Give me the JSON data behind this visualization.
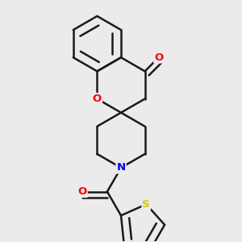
{
  "background_color": "#ebebeb",
  "bond_color": "#1a1a1a",
  "atom_colors": {
    "O": "#ff0000",
    "N": "#0000ff",
    "S": "#cccc00",
    "C": "#1a1a1a"
  },
  "figsize": [
    3.0,
    3.0
  ],
  "dpi": 100,
  "bond_lw": 1.8,
  "BL": 0.115
}
